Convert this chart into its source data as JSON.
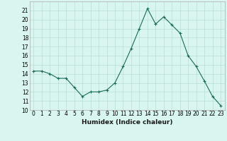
{
  "x": [
    0,
    1,
    2,
    3,
    4,
    5,
    6,
    7,
    8,
    9,
    10,
    11,
    12,
    13,
    14,
    15,
    16,
    17,
    18,
    19,
    20,
    21,
    22,
    23
  ],
  "y": [
    14.3,
    14.3,
    14.0,
    13.5,
    13.5,
    12.5,
    11.5,
    12.0,
    12.0,
    12.2,
    13.0,
    14.8,
    16.8,
    19.0,
    21.2,
    19.5,
    20.3,
    19.4,
    18.5,
    16.0,
    14.8,
    13.2,
    11.5,
    10.5
  ],
  "line_color": "#1a6b5a",
  "marker": "+",
  "marker_size": 3.5,
  "bg_color": "#d8f5ef",
  "grid_color": "#b8ddd6",
  "xlabel": "Humidex (Indice chaleur)",
  "ylim": [
    10,
    22
  ],
  "xlim": [
    -0.5,
    23.5
  ],
  "yticks": [
    10,
    11,
    12,
    13,
    14,
    15,
    16,
    17,
    18,
    19,
    20,
    21
  ],
  "xtick_labels": [
    "0",
    "1",
    "2",
    "3",
    "4",
    "5",
    "6",
    "7",
    "8",
    "9",
    "10",
    "11",
    "12",
    "13",
    "14",
    "15",
    "16",
    "17",
    "18",
    "19",
    "20",
    "21",
    "22",
    "23"
  ],
  "tick_fontsize": 5.5,
  "xlabel_fontsize": 6.5,
  "line_width": 0.8
}
